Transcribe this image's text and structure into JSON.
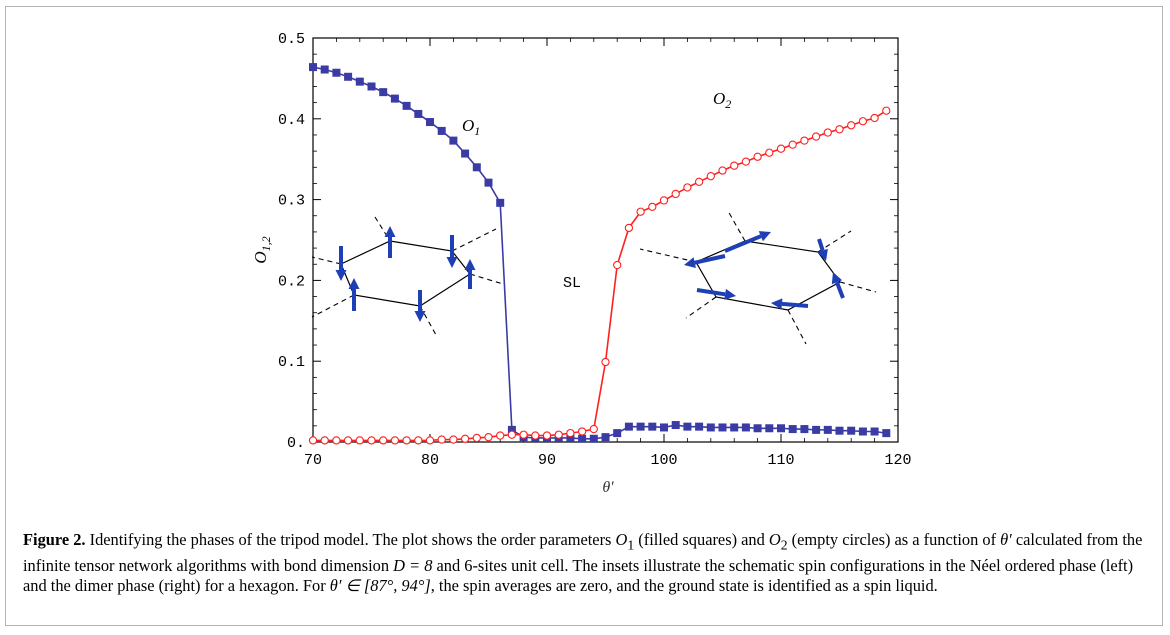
{
  "chart_data": {
    "type": "scatter",
    "xlabel": "θ′",
    "ylabel": "O1,2",
    "xlim": [
      70,
      120
    ],
    "ylim": [
      0,
      0.5
    ],
    "x_ticks": [
      "70",
      "80",
      "90",
      "100",
      "110",
      "120"
    ],
    "y_ticks": [
      "0.",
      "0.1",
      "0.2",
      "0.3",
      "0.4",
      "0.5"
    ],
    "grid": false,
    "annotations": [
      "O1",
      "O2",
      "SL"
    ],
    "series": [
      {
        "name": "O1",
        "marker": "filled-square",
        "color": "#3b3ba6",
        "x": [
          70,
          71,
          72,
          73,
          74,
          75,
          76,
          77,
          78,
          79,
          80,
          81,
          82,
          83,
          84,
          85,
          86,
          87,
          88,
          89,
          90,
          91,
          92,
          93,
          94,
          95,
          96,
          97,
          98,
          99,
          100,
          101,
          102,
          103,
          104,
          105,
          106,
          107,
          108,
          109,
          110,
          111,
          112,
          113,
          114,
          115,
          116,
          117,
          118,
          119
        ],
        "y": [
          0.464,
          0.461,
          0.457,
          0.452,
          0.446,
          0.44,
          0.433,
          0.425,
          0.416,
          0.406,
          0.396,
          0.385,
          0.373,
          0.357,
          0.34,
          0.321,
          0.296,
          0.015,
          0.006,
          0.005,
          0.005,
          0.005,
          0.005,
          0.004,
          0.004,
          0.006,
          0.011,
          0.019,
          0.019,
          0.019,
          0.018,
          0.021,
          0.019,
          0.019,
          0.018,
          0.018,
          0.018,
          0.018,
          0.017,
          0.017,
          0.017,
          0.016,
          0.016,
          0.015,
          0.015,
          0.014,
          0.014,
          0.013,
          0.013,
          0.011
        ]
      },
      {
        "name": "O2",
        "marker": "empty-circle",
        "color": "#ff2020",
        "x": [
          70,
          71,
          72,
          73,
          74,
          75,
          76,
          77,
          78,
          79,
          80,
          81,
          82,
          83,
          84,
          85,
          86,
          87,
          88,
          89,
          90,
          91,
          92,
          93,
          94,
          95,
          96,
          97,
          98,
          99,
          100,
          101,
          102,
          103,
          104,
          105,
          106,
          107,
          108,
          109,
          110,
          111,
          112,
          113,
          114,
          115,
          116,
          117,
          118,
          119
        ],
        "y": [
          0.002,
          0.002,
          0.002,
          0.002,
          0.002,
          0.002,
          0.002,
          0.002,
          0.002,
          0.002,
          0.002,
          0.003,
          0.003,
          0.004,
          0.005,
          0.006,
          0.008,
          0.009,
          0.009,
          0.008,
          0.008,
          0.009,
          0.011,
          0.013,
          0.016,
          0.099,
          0.219,
          0.265,
          0.285,
          0.291,
          0.299,
          0.307,
          0.315,
          0.322,
          0.329,
          0.336,
          0.342,
          0.347,
          0.353,
          0.358,
          0.363,
          0.368,
          0.373,
          0.378,
          0.383,
          0.387,
          0.392,
          0.397,
          0.401,
          0.41
        ]
      }
    ]
  },
  "caption": {
    "label": "Figure 2.",
    "text_1": " Identifying the phases of the tripod model. The plot shows the order parameters ",
    "o1": "O",
    "o1_sub": "1",
    "text_2": " (filled squares) and ",
    "o2": "O",
    "o2_sub": "2",
    "text_3": " (empty circles) as a function of ",
    "theta": "θ′",
    "text_4": " calculated from the infinite tensor network algorithms with bond dimension ",
    "bond": "D = 8",
    "text_5": " and 6-sites unit cell. The insets illustrate the schematic spin configurations in the Néel ordered phase (left) and the dimer phase (right) for a hexagon. For ",
    "range": "θ′ ∈ [87°, 94°]",
    "text_6": ", the spin averages are zero, and the ground state is identified as a spin liquid."
  }
}
